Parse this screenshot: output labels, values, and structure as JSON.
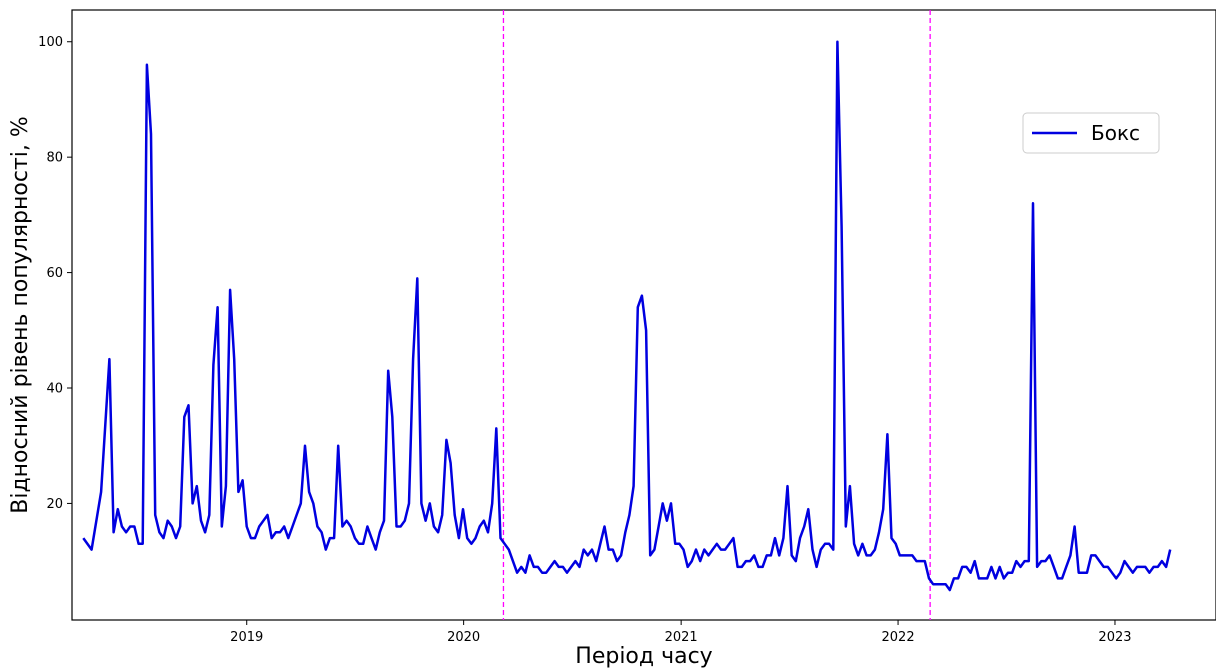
{
  "chart_data": {
    "type": "line",
    "title": "",
    "xlabel": "Період часу",
    "ylabel": "Відносний рівень популярності, %",
    "x_ticks": [
      "2019",
      "2020",
      "2021",
      "2022",
      "2023"
    ],
    "y_ticks": [
      "20",
      "40",
      "60",
      "80",
      "100"
    ],
    "xlim": [
      "2018-03-13",
      "2023-06-20"
    ],
    "ylim": [
      -0.2,
      105.5
    ],
    "grid": false,
    "legend_position": "upper-right",
    "vlines": [
      {
        "x": "2020-03-08",
        "color": "#ff00ff",
        "style": "dashed"
      },
      {
        "x": "2022-02-24",
        "color": "#ff00ff",
        "style": "dashed"
      }
    ],
    "series": [
      {
        "name": "Бокс",
        "color": "#0000e0",
        "x": [
          "2018-04-01",
          "2018-04-15",
          "2018-05-01",
          "2018-05-15",
          "2018-05-22",
          "2018-05-29",
          "2018-06-05",
          "2018-06-12",
          "2018-06-19",
          "2018-06-26",
          "2018-07-03",
          "2018-07-10",
          "2018-07-17",
          "2018-07-24",
          "2018-07-31",
          "2018-08-07",
          "2018-08-14",
          "2018-08-21",
          "2018-08-28",
          "2018-09-04",
          "2018-09-11",
          "2018-09-18",
          "2018-09-25",
          "2018-10-02",
          "2018-10-09",
          "2018-10-16",
          "2018-10-23",
          "2018-10-30",
          "2018-11-06",
          "2018-11-13",
          "2018-11-20",
          "2018-11-27",
          "2018-12-04",
          "2018-12-11",
          "2018-12-18",
          "2018-12-25",
          "2019-01-01",
          "2019-01-08",
          "2019-01-15",
          "2019-01-22",
          "2019-01-29",
          "2019-02-05",
          "2019-02-12",
          "2019-02-19",
          "2019-02-26",
          "2019-03-05",
          "2019-03-12",
          "2019-03-19",
          "2019-03-26",
          "2019-04-02",
          "2019-04-09",
          "2019-04-16",
          "2019-04-23",
          "2019-04-30",
          "2019-05-07",
          "2019-05-14",
          "2019-05-21",
          "2019-05-28",
          "2019-06-04",
          "2019-06-11",
          "2019-06-18",
          "2019-06-25",
          "2019-07-02",
          "2019-07-09",
          "2019-07-16",
          "2019-07-23",
          "2019-07-30",
          "2019-08-06",
          "2019-08-13",
          "2019-08-20",
          "2019-08-27",
          "2019-09-03",
          "2019-09-10",
          "2019-09-17",
          "2019-09-24",
          "2019-10-01",
          "2019-10-08",
          "2019-10-15",
          "2019-10-22",
          "2019-10-29",
          "2019-11-05",
          "2019-11-12",
          "2019-11-19",
          "2019-11-26",
          "2019-12-03",
          "2019-12-10",
          "2019-12-17",
          "2019-12-24",
          "2019-12-31",
          "2020-01-07",
          "2020-01-14",
          "2020-01-21",
          "2020-01-28",
          "2020-02-04",
          "2020-02-11",
          "2020-02-18",
          "2020-02-25",
          "2020-03-03",
          "2020-03-10",
          "2020-03-17",
          "2020-03-31",
          "2020-04-07",
          "2020-04-14",
          "2020-04-21",
          "2020-04-28",
          "2020-05-05",
          "2020-05-12",
          "2020-05-19",
          "2020-05-26",
          "2020-06-02",
          "2020-06-09",
          "2020-06-16",
          "2020-06-23",
          "2020-06-30",
          "2020-07-07",
          "2020-07-14",
          "2020-07-21",
          "2020-07-28",
          "2020-08-04",
          "2020-08-11",
          "2020-08-18",
          "2020-08-25",
          "2020-09-01",
          "2020-09-08",
          "2020-09-15",
          "2020-09-22",
          "2020-09-29",
          "2020-10-06",
          "2020-10-13",
          "2020-10-20",
          "2020-10-27",
          "2020-11-03",
          "2020-11-10",
          "2020-11-17",
          "2020-11-24",
          "2020-12-01",
          "2020-12-08",
          "2020-12-15",
          "2020-12-22",
          "2020-12-29",
          "2021-01-05",
          "2021-01-12",
          "2021-01-19",
          "2021-01-26",
          "2021-02-02",
          "2021-02-09",
          "2021-02-16",
          "2021-02-23",
          "2021-03-02",
          "2021-03-09",
          "2021-03-16",
          "2021-03-23",
          "2021-03-30",
          "2021-04-06",
          "2021-04-13",
          "2021-04-20",
          "2021-04-27",
          "2021-05-04",
          "2021-05-11",
          "2021-05-18",
          "2021-05-25",
          "2021-06-01",
          "2021-06-08",
          "2021-06-15",
          "2021-06-22",
          "2021-06-29",
          "2021-07-06",
          "2021-07-13",
          "2021-07-20",
          "2021-07-27",
          "2021-08-03",
          "2021-08-10",
          "2021-08-17",
          "2021-08-24",
          "2021-08-31",
          "2021-09-07",
          "2021-09-14",
          "2021-09-21",
          "2021-09-28",
          "2021-10-05",
          "2021-10-12",
          "2021-10-19",
          "2021-10-26",
          "2021-11-02",
          "2021-11-09",
          "2021-11-16",
          "2021-11-23",
          "2021-11-30",
          "2021-12-07",
          "2021-12-14",
          "2021-12-21",
          "2021-12-28",
          "2022-01-04",
          "2022-01-11",
          "2022-01-18",
          "2022-01-25",
          "2022-02-01",
          "2022-02-08",
          "2022-02-15",
          "2022-02-22",
          "2022-03-01",
          "2022-03-08",
          "2022-03-15",
          "2022-03-22",
          "2022-03-29",
          "2022-04-05",
          "2022-04-12",
          "2022-04-19",
          "2022-04-26",
          "2022-05-03",
          "2022-05-10",
          "2022-05-17",
          "2022-05-24",
          "2022-05-31",
          "2022-06-07",
          "2022-06-14",
          "2022-06-21",
          "2022-06-28",
          "2022-07-05",
          "2022-07-12",
          "2022-07-19",
          "2022-07-26",
          "2022-08-02",
          "2022-08-09",
          "2022-08-16",
          "2022-08-23",
          "2022-08-30",
          "2022-09-06",
          "2022-09-13",
          "2022-09-20",
          "2022-09-27",
          "2022-10-04",
          "2022-10-11",
          "2022-10-18",
          "2022-10-25",
          "2022-11-01",
          "2022-11-08",
          "2022-11-15",
          "2022-11-22",
          "2022-11-29",
          "2022-12-06",
          "2022-12-13",
          "2022-12-20",
          "2022-12-27",
          "2023-01-03",
          "2023-01-10",
          "2023-01-17",
          "2023-01-24",
          "2023-01-31",
          "2023-02-07",
          "2023-02-14",
          "2023-02-21",
          "2023-02-28",
          "2023-03-07",
          "2023-03-14",
          "2023-03-21",
          "2023-03-28",
          "2023-04-04"
        ],
        "y": [
          14,
          12,
          22,
          45,
          15,
          19,
          16,
          15,
          16,
          16,
          13,
          13,
          96,
          84,
          18,
          15,
          14,
          17,
          16,
          14,
          16,
          35,
          37,
          20,
          23,
          17,
          15,
          18,
          44,
          54,
          16,
          23,
          57,
          45,
          22,
          24,
          16,
          14,
          14,
          16,
          17,
          18,
          14,
          15,
          15,
          16,
          14,
          16,
          18,
          20,
          30,
          22,
          20,
          16,
          15,
          12,
          14,
          14,
          30,
          16,
          17,
          16,
          14,
          13,
          13,
          16,
          14,
          12,
          15,
          17,
          43,
          35,
          16,
          16,
          17,
          20,
          45,
          59,
          20,
          17,
          20,
          16,
          15,
          18,
          31,
          27,
          18,
          14,
          19,
          14,
          13,
          14,
          16,
          17,
          15,
          20,
          33,
          14,
          13,
          12,
          8,
          9,
          8,
          11,
          9,
          9,
          8,
          8,
          9,
          10,
          9,
          9,
          8,
          9,
          10,
          9,
          12,
          11,
          12,
          10,
          13,
          16,
          12,
          12,
          10,
          11,
          15,
          18,
          23,
          54,
          56,
          50,
          11,
          12,
          16,
          20,
          17,
          20,
          13,
          13,
          12,
          9,
          10,
          12,
          10,
          12,
          11,
          12,
          13,
          12,
          12,
          13,
          14,
          9,
          9,
          10,
          10,
          11,
          9,
          9,
          11,
          11,
          14,
          11,
          14,
          23,
          11,
          10,
          14,
          16,
          19,
          12,
          9,
          12,
          13,
          13,
          12,
          100,
          68,
          16,
          23,
          13,
          11,
          13,
          11,
          11,
          12,
          15,
          19,
          32,
          14,
          13,
          11,
          11,
          11,
          11,
          10,
          10,
          10,
          7,
          6,
          6,
          6,
          6,
          5,
          7,
          7,
          9,
          9,
          8,
          10,
          7,
          7,
          7,
          9,
          7,
          9,
          7,
          8,
          8,
          10,
          9,
          10,
          10,
          72,
          9,
          10,
          10,
          11,
          9,
          7,
          7,
          9,
          11,
          16,
          8,
          8,
          8,
          11,
          11,
          10,
          9,
          9,
          8,
          7,
          8,
          10,
          9,
          8,
          9,
          9,
          9,
          8,
          9,
          9,
          10,
          9,
          12
        ]
      }
    ]
  }
}
